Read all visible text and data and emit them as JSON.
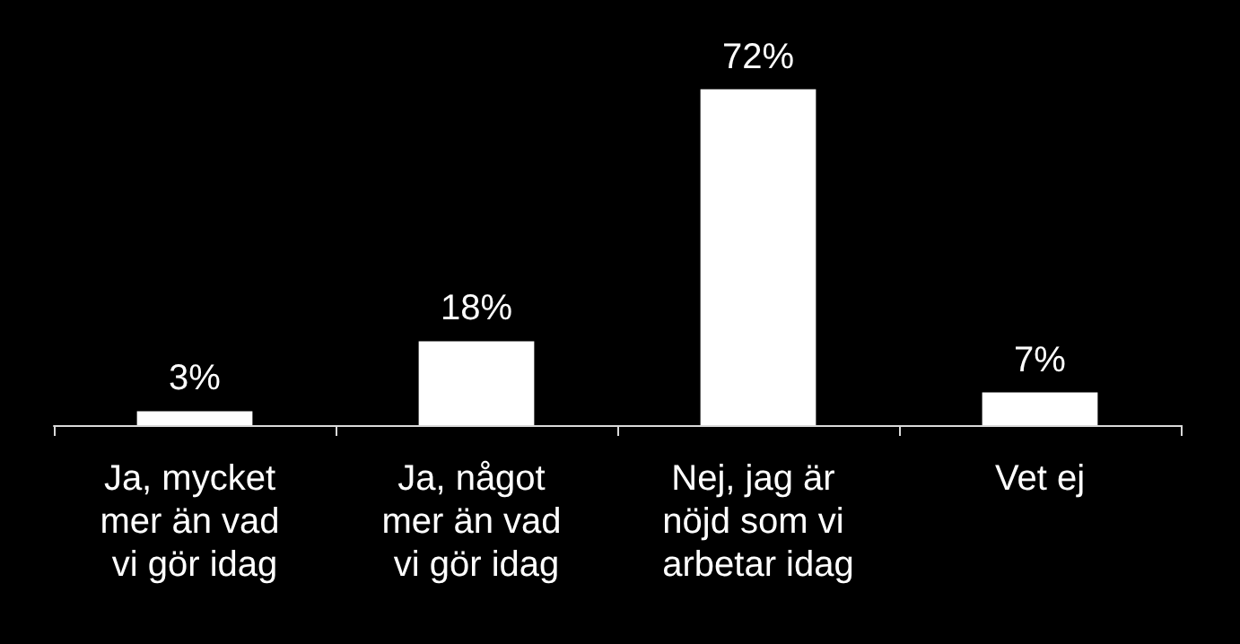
{
  "chart_data": {
    "type": "bar",
    "categories": [
      "Ja, mycket mer än vad vi gör idag",
      "Ja, något mer än vad vi gör idag",
      "Nej, jag är nöjd som vi arbetar idag",
      "Vet ej"
    ],
    "values": [
      3,
      18,
      72,
      7
    ],
    "value_labels": [
      "3%",
      "18%",
      "72%",
      "7%"
    ],
    "color": "#ffffff"
  }
}
